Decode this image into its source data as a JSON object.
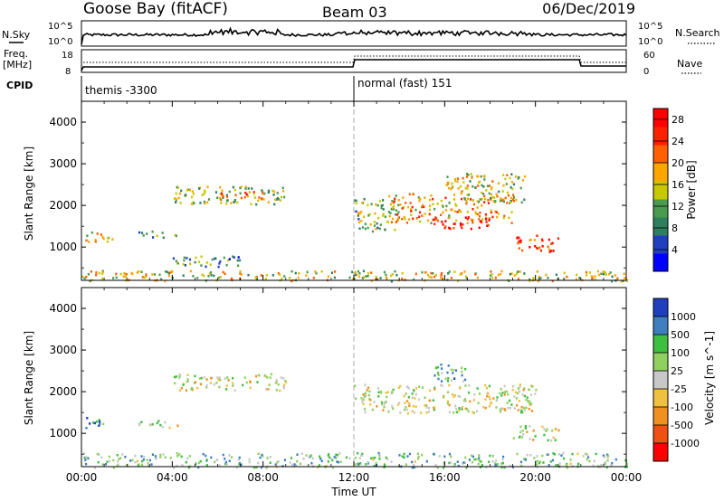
{
  "header": {
    "station": "Goose Bay (fitACF)",
    "beam": "Beam 03",
    "date": "06/Dec/2019"
  },
  "noise_panel": {
    "left_label": "N.Sky",
    "right_label": "N.Search",
    "left_ticks": [
      "10^5",
      "10^0"
    ],
    "right_ticks": [
      "10^5",
      "10^0"
    ]
  },
  "freq_panel": {
    "left_label_1": "Freq.",
    "left_label_2": "[MHz]",
    "right_label": "Nave",
    "left_ticks": [
      "18",
      "8"
    ],
    "right_ticks": [
      "60",
      "0"
    ]
  },
  "cpid_panel": {
    "label": "CPID",
    "modes": [
      {
        "name": "themis -3300",
        "start": "00:00",
        "end": "12:00"
      },
      {
        "name": "normal (fast) 151",
        "start": "12:00",
        "end": "24:00"
      }
    ]
  },
  "colors": {
    "power_scale": [
      "#0000ff",
      "#2040c0",
      "#2f7f5f",
      "#4a9a50",
      "#c8c800",
      "#ffa500",
      "#ff6000",
      "#ff2000",
      "#ff0000"
    ],
    "velocity_scale": [
      "#1f3fbf",
      "#3f7fbf",
      "#3fbf3f",
      "#90d060",
      "#c8c8c8",
      "#f0c040",
      "#f09020",
      "#f05010",
      "#ff0000"
    ]
  },
  "chart_data": [
    {
      "type": "heatmap",
      "name": "power",
      "ylabel": "Slant Range [km]",
      "yticks": [
        1000,
        2000,
        3000,
        4000
      ],
      "ylim": [
        200,
        4500
      ],
      "colorbar_label": "Power [dB]",
      "colorbar_ticks": [
        4,
        8,
        12,
        16,
        20,
        24,
        28
      ],
      "colorbar_range": [
        0,
        30
      ],
      "regions": [
        {
          "t0": 0.1,
          "t1": 1.2,
          "r0": 1150,
          "r1": 1400,
          "level": 0.55
        },
        {
          "t0": 1.1,
          "t1": 1.6,
          "r0": 1100,
          "r1": 1250,
          "level": 0.6
        },
        {
          "t0": 2.5,
          "t1": 4.3,
          "r0": 1250,
          "r1": 1400,
          "level": 0.35
        },
        {
          "t0": 3.5,
          "t1": 7.0,
          "r0": 550,
          "r1": 800,
          "level": 0.3
        },
        {
          "t0": 4.0,
          "t1": 9.0,
          "r0": 2050,
          "r1": 2500,
          "level": 0.45
        },
        {
          "t0": 6.0,
          "t1": 8.0,
          "r0": 2150,
          "r1": 2350,
          "level": 0.7
        },
        {
          "t0": 12.0,
          "t1": 14.0,
          "r0": 1400,
          "r1": 2200,
          "level": 0.4
        },
        {
          "t0": 13.5,
          "t1": 19.0,
          "r0": 1600,
          "r1": 2300,
          "level": 0.65
        },
        {
          "t0": 15.5,
          "t1": 18.0,
          "r0": 1450,
          "r1": 1750,
          "level": 0.9
        },
        {
          "t0": 16.0,
          "t1": 19.5,
          "r0": 2100,
          "r1": 2800,
          "level": 0.5
        },
        {
          "t0": 19.0,
          "t1": 21.0,
          "r0": 900,
          "r1": 1300,
          "level": 0.85
        },
        {
          "t0": 0.0,
          "t1": 24.0,
          "r0": 200,
          "r1": 450,
          "level": 0.5
        }
      ]
    },
    {
      "type": "heatmap",
      "name": "velocity",
      "ylabel": "Slant Range [km]",
      "yticks": [
        1000,
        2000,
        3000,
        4000
      ],
      "ylim": [
        200,
        4500
      ],
      "colorbar_label": "Velocity [m s^-1]",
      "colorbar_ticks": [
        "1000",
        "500",
        "100",
        "25",
        "-25",
        "-100",
        "-500",
        "-1000"
      ],
      "regions": [
        {
          "t0": 0.1,
          "t1": 1.2,
          "r0": 1150,
          "r1": 1400,
          "level": 0.2
        },
        {
          "t0": 2.5,
          "t1": 4.3,
          "r0": 1150,
          "r1": 1350,
          "level": 0.5
        },
        {
          "t0": 4.0,
          "t1": 9.0,
          "r0": 2050,
          "r1": 2450,
          "level": 0.5
        },
        {
          "t0": 12.0,
          "t1": 20.0,
          "r0": 1500,
          "r1": 2200,
          "level": 0.5
        },
        {
          "t0": 15.5,
          "t1": 17.0,
          "r0": 2250,
          "r1": 2700,
          "level": 0.3
        },
        {
          "t0": 19.0,
          "t1": 21.0,
          "r0": 850,
          "r1": 1200,
          "level": 0.5
        },
        {
          "t0": 0.0,
          "t1": 24.0,
          "r0": 200,
          "r1": 550,
          "level": 0.35
        }
      ]
    }
  ],
  "x_axis": {
    "label": "Time UT",
    "ticks": [
      "00:00",
      "04:00",
      "08:00",
      "12:00",
      "16:00",
      "20:00",
      "00:00"
    ]
  }
}
